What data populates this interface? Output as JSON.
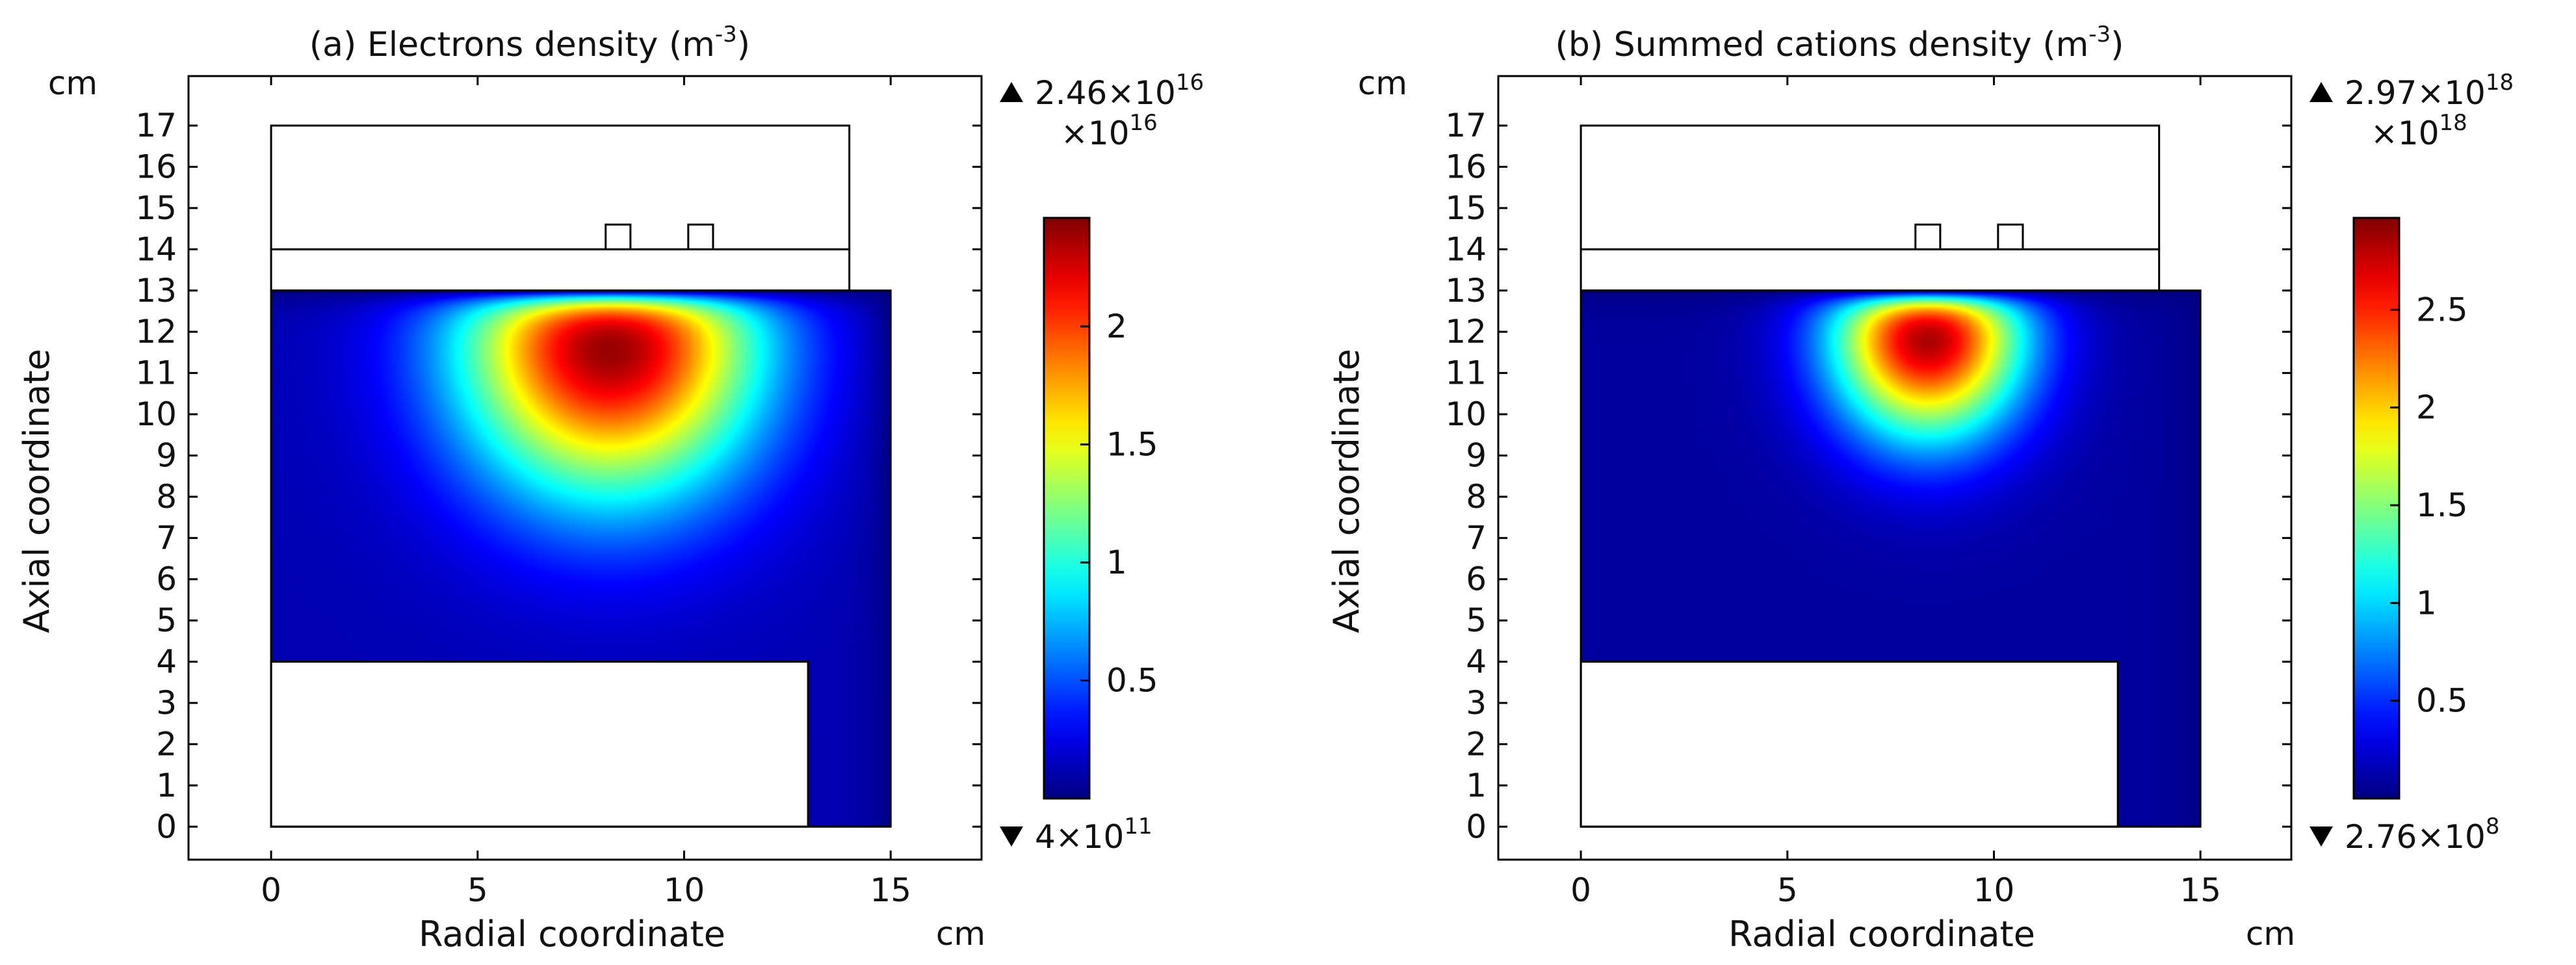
{
  "chart_data": [
    {
      "type": "heatmap",
      "title_prefix": "(a) Electrons density (m",
      "title_exp": "-3",
      "title_suffix": ")",
      "xlabel": "Radial coordinate",
      "ylabel": "Axial coordinate",
      "x_unit": "cm",
      "y_unit": "cm",
      "xlim": [
        -2,
        17.2
      ],
      "ylim": [
        -0.8,
        18.2
      ],
      "x_ticks": [
        "0",
        "5",
        "10",
        "15"
      ],
      "y_ticks": [
        "0",
        "1",
        "2",
        "3",
        "4",
        "5",
        "6",
        "7",
        "8",
        "9",
        "10",
        "11",
        "12",
        "13",
        "14",
        "15",
        "16",
        "17"
      ],
      "plasma_region": {
        "r": [
          0,
          15
        ],
        "z": [
          0,
          13
        ]
      },
      "excluded_blocks": [
        {
          "name": "lower-electrode",
          "r": [
            0,
            13
          ],
          "z": [
            0,
            4
          ]
        }
      ],
      "upper_outline": [
        {
          "name": "dielectric-window",
          "r": [
            0,
            14
          ],
          "z": [
            13,
            14
          ]
        },
        {
          "name": "coil-housing",
          "r": [
            0,
            14
          ],
          "z": [
            14,
            17
          ]
        },
        {
          "name": "coil-turn-1",
          "r": [
            8.1,
            8.7
          ],
          "z": [
            14,
            14.6
          ]
        },
        {
          "name": "coil-turn-2",
          "r": [
            10.1,
            10.7
          ],
          "z": [
            14,
            14.6
          ]
        }
      ],
      "peak": {
        "r": 8.2,
        "z": 11.9,
        "sr": 3.6,
        "sz": 3.8,
        "floor": 0.05
      },
      "colorbar": {
        "max_label": "2.46×10",
        "max_exp": "16",
        "min_label": "4×10",
        "min_exp": "11",
        "scale_label": "×10",
        "scale_exp": "16",
        "vmin": 0.0,
        "vmax": 2.46,
        "ticks": [
          0.5,
          1,
          1.5,
          2
        ],
        "tick_labels": [
          "0.5",
          "1",
          "1.5",
          "2"
        ]
      }
    },
    {
      "type": "heatmap",
      "title_prefix": "(b) Summed cations density (m",
      "title_exp": "-3",
      "title_suffix": ")",
      "xlabel": "Radial coordinate",
      "ylabel": "Axial coordinate",
      "x_unit": "cm",
      "y_unit": "cm",
      "xlim": [
        -2,
        17.2
      ],
      "ylim": [
        -0.8,
        18.2
      ],
      "x_ticks": [
        "0",
        "5",
        "10",
        "15"
      ],
      "y_ticks": [
        "0",
        "1",
        "2",
        "3",
        "4",
        "5",
        "6",
        "7",
        "8",
        "9",
        "10",
        "11",
        "12",
        "13",
        "14",
        "15",
        "16",
        "17"
      ],
      "plasma_region": {
        "r": [
          0,
          15
        ],
        "z": [
          0,
          13
        ]
      },
      "excluded_blocks": [
        {
          "name": "lower-electrode",
          "r": [
            0,
            13
          ],
          "z": [
            0,
            4
          ]
        }
      ],
      "upper_outline": [
        {
          "name": "dielectric-window",
          "r": [
            0,
            14
          ],
          "z": [
            13,
            14
          ]
        },
        {
          "name": "coil-housing",
          "r": [
            0,
            14
          ],
          "z": [
            14,
            17
          ]
        },
        {
          "name": "coil-turn-1",
          "r": [
            8.1,
            8.7
          ],
          "z": [
            14,
            14.6
          ]
        },
        {
          "name": "coil-turn-2",
          "r": [
            10.1,
            10.7
          ],
          "z": [
            14,
            14.6
          ]
        }
      ],
      "peak": {
        "r": 8.4,
        "z": 12.1,
        "sr": 2.3,
        "sz": 2.6,
        "floor": 0.03
      },
      "colorbar": {
        "max_label": "2.97×10",
        "max_exp": "18",
        "min_label": "2.76×10",
        "min_exp": "8",
        "scale_label": "×10",
        "scale_exp": "18",
        "vmin": 0.0,
        "vmax": 2.97,
        "ticks": [
          0.5,
          1,
          1.5,
          2,
          2.5
        ],
        "tick_labels": [
          "0.5",
          "1",
          "1.5",
          "2",
          "2.5"
        ]
      }
    }
  ]
}
